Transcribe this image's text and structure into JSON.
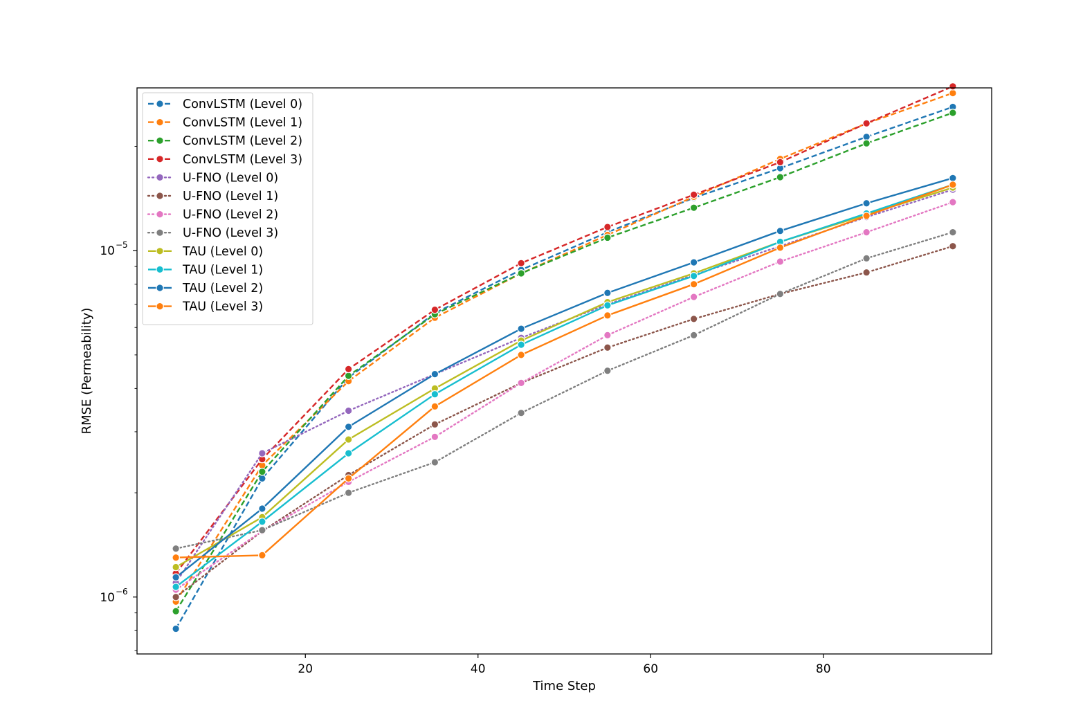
{
  "chart_data": {
    "type": "line",
    "title": "",
    "xlabel": "Time Step",
    "ylabel": "RMSE (Permeability)",
    "yscale": "log",
    "xlim": [
      0.5,
      99.5
    ],
    "ylim": [
      6.85e-07,
      2.95e-05
    ],
    "xticks": [
      20,
      40,
      60,
      80
    ],
    "xtick_labels": [
      "20",
      "40",
      "60",
      "80"
    ],
    "yticks": [
      1e-06,
      1e-05
    ],
    "ytick_labels": [
      {
        "base": "10",
        "exp": "−6"
      },
      {
        "base": "10",
        "exp": "−5"
      }
    ],
    "legend_position": "upper left",
    "x": [
      5,
      15,
      25,
      35,
      45,
      55,
      65,
      75,
      85,
      95
    ],
    "series": [
      {
        "name": "ConvLSTM (Level 0)",
        "style": "dashed",
        "color": "#1f77b4",
        "values": [
          8.1e-07,
          2.2e-06,
          4.3e-06,
          6.6e-06,
          8.8e-06,
          1.13e-05,
          1.42e-05,
          1.73e-05,
          2.13e-05,
          2.6e-05
        ]
      },
      {
        "name": "ConvLSTM (Level 1)",
        "style": "dashed",
        "color": "#ff7f0e",
        "values": [
          9.7e-07,
          2.4e-06,
          4.2e-06,
          6.4e-06,
          8.6e-06,
          1.11e-05,
          1.43e-05,
          1.84e-05,
          2.33e-05,
          2.85e-05
        ]
      },
      {
        "name": "ConvLSTM (Level 2)",
        "style": "dashed",
        "color": "#2ca02c",
        "values": [
          9.1e-07,
          2.3e-06,
          4.35e-06,
          6.55e-06,
          8.6e-06,
          1.09e-05,
          1.33e-05,
          1.63e-05,
          2.04e-05,
          2.5e-05
        ]
      },
      {
        "name": "ConvLSTM (Level 3)",
        "style": "dashed",
        "color": "#d62728",
        "values": [
          1.17e-06,
          2.5e-06,
          4.55e-06,
          6.75e-06,
          9.2e-06,
          1.17e-05,
          1.45e-05,
          1.8e-05,
          2.33e-05,
          2.98e-05
        ]
      },
      {
        "name": "U-FNO (Level 0)",
        "style": "dotted",
        "color": "#9467bd",
        "values": [
          1.1e-06,
          2.6e-06,
          3.45e-06,
          4.4e-06,
          5.6e-06,
          7e-06,
          8.5e-06,
          1.03e-05,
          1.25e-05,
          1.5e-05
        ]
      },
      {
        "name": "U-FNO (Level 1)",
        "style": "dotted",
        "color": "#8c564b",
        "values": [
          1e-06,
          1.55e-06,
          2.25e-06,
          3.15e-06,
          4.15e-06,
          5.25e-06,
          6.35e-06,
          7.5e-06,
          8.65e-06,
          1.03e-05
        ]
      },
      {
        "name": "U-FNO (Level 2)",
        "style": "dotted",
        "color": "#e377c2",
        "values": [
          1.05e-06,
          1.55e-06,
          2.15e-06,
          2.9e-06,
          4.15e-06,
          5.7e-06,
          7.35e-06,
          9.3e-06,
          1.13e-05,
          1.38e-05
        ]
      },
      {
        "name": "U-FNO (Level 3)",
        "style": "dotted",
        "color": "#7f7f7f",
        "values": [
          1.38e-06,
          1.56e-06,
          2e-06,
          2.45e-06,
          3.4e-06,
          4.5e-06,
          5.7e-06,
          7.5e-06,
          9.5e-06,
          1.13e-05
        ]
      },
      {
        "name": "TAU (Level 0)",
        "style": "solid",
        "color": "#bcbd22",
        "values": [
          1.22e-06,
          1.7e-06,
          2.85e-06,
          4e-06,
          5.5e-06,
          7.1e-06,
          8.6e-06,
          1.06e-05,
          1.27e-05,
          1.52e-05
        ]
      },
      {
        "name": "TAU (Level 1)",
        "style": "solid",
        "color": "#17becf",
        "values": [
          1.07e-06,
          1.65e-06,
          2.6e-06,
          3.85e-06,
          5.35e-06,
          6.95e-06,
          8.45e-06,
          1.06e-05,
          1.28e-05,
          1.55e-05
        ]
      },
      {
        "name": "TAU (Level 2)",
        "style": "solid",
        "color": "#1f77b4",
        "values": [
          1.14e-06,
          1.8e-06,
          3.1e-06,
          4.4e-06,
          5.95e-06,
          7.55e-06,
          9.25e-06,
          1.14e-05,
          1.37e-05,
          1.62e-05
        ]
      },
      {
        "name": "TAU (Level 3)",
        "style": "solid",
        "color": "#ff7f0e",
        "values": [
          1.3e-06,
          1.32e-06,
          2.2e-06,
          3.55e-06,
          5e-06,
          6.5e-06,
          8e-06,
          1.02e-05,
          1.26e-05,
          1.55e-05
        ]
      }
    ]
  }
}
